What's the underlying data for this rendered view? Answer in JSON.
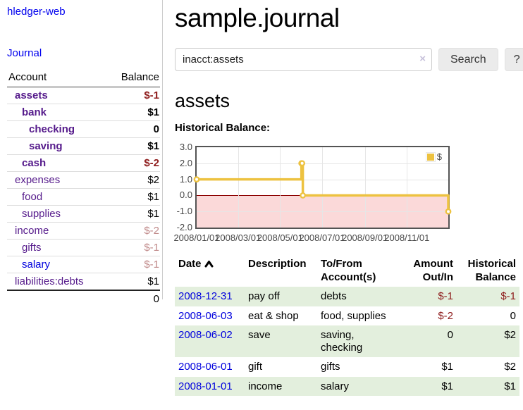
{
  "colors": {
    "link_purple": "#551a8b",
    "link_blue": "#0000dd",
    "negative_strong": "#8e1c1c",
    "negative_dim": "#c08a8a",
    "row_green": "#e3efdd",
    "chart_line": "#edc240",
    "chart_negative_fill": "#fbd9d9",
    "chart_zero_line": "#8b0000"
  },
  "app": {
    "brand": "hledger-web",
    "nav_journal": "Journal"
  },
  "sidebar": {
    "header": {
      "account": "Account",
      "balance": "Balance"
    },
    "accounts": [
      {
        "name": "assets",
        "balance": "$-1",
        "indent": 0,
        "bold": true,
        "blue": false
      },
      {
        "name": "bank",
        "balance": "$1",
        "indent": 1,
        "bold": true,
        "blue": false
      },
      {
        "name": "checking",
        "balance": "0",
        "indent": 2,
        "bold": true,
        "blue": false
      },
      {
        "name": "saving",
        "balance": "$1",
        "indent": 2,
        "bold": true,
        "blue": false
      },
      {
        "name": "cash",
        "balance": "$-2",
        "indent": 1,
        "bold": true,
        "blue": false
      },
      {
        "name": "expenses",
        "balance": "$2",
        "indent": 0,
        "bold": false,
        "blue": false
      },
      {
        "name": "food",
        "balance": "$1",
        "indent": 1,
        "bold": false,
        "blue": false
      },
      {
        "name": "supplies",
        "balance": "$1",
        "indent": 1,
        "bold": false,
        "blue": false
      },
      {
        "name": "income",
        "balance": "$-2",
        "indent": 0,
        "bold": false,
        "blue": false
      },
      {
        "name": "gifts",
        "balance": "$-1",
        "indent": 1,
        "bold": false,
        "blue": false
      },
      {
        "name": "salary",
        "balance": "$-1",
        "indent": 1,
        "bold": false,
        "blue": true
      },
      {
        "name": "liabilities:debts",
        "balance": "$1",
        "indent": 0,
        "bold": false,
        "blue": false
      }
    ],
    "total": "0"
  },
  "main": {
    "title": "sample.journal",
    "search": {
      "value": "inacct:assets",
      "clear": "×",
      "button": "Search",
      "help": "?"
    },
    "account_heading": "assets",
    "chart_label": "Historical Balance:"
  },
  "chart_data": {
    "type": "line",
    "title": "Historical Balance",
    "step": true,
    "series": [
      {
        "name": "$",
        "color": "#edc240",
        "points": [
          [
            "2008-01-01",
            1
          ],
          [
            "2008-06-01",
            2
          ],
          [
            "2008-06-02",
            2
          ],
          [
            "2008-06-03",
            0
          ],
          [
            "2008-12-31",
            -1
          ]
        ]
      }
    ],
    "xrange": [
      "2008-01-01",
      "2008-12-31"
    ],
    "ylim": [
      -2.0,
      3.0
    ],
    "yticks": [
      3.0,
      2.0,
      1.0,
      0.0,
      -1.0,
      -2.0
    ],
    "xticks": [
      "2008/01/01",
      "2008/03/01",
      "2008/05/01",
      "2008/07/01",
      "2008/09/01",
      "2008/11/01"
    ],
    "grid": true,
    "legend_position": "top-right",
    "negative_region": true
  },
  "register": {
    "columns": [
      "Date",
      "Description",
      "To/From Account(s)",
      "Amount Out/In",
      "Historical Balance"
    ],
    "rows": [
      {
        "date": "2008-12-31",
        "description": "pay off",
        "accounts": "debts",
        "amount": "$-1",
        "balance": "$-1"
      },
      {
        "date": "2008-06-03",
        "description": "eat & shop",
        "accounts": "food, supplies",
        "amount": "$-2",
        "balance": "0"
      },
      {
        "date": "2008-06-02",
        "description": "save",
        "accounts": "saving, checking",
        "amount": "0",
        "balance": "$2"
      },
      {
        "date": "2008-06-01",
        "description": "gift",
        "accounts": "gifts",
        "amount": "$1",
        "balance": "$2"
      },
      {
        "date": "2008-01-01",
        "description": "income",
        "accounts": "salary",
        "amount": "$1",
        "balance": "$1"
      }
    ]
  }
}
